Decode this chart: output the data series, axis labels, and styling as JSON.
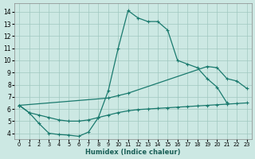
{
  "xlabel": "Humidex (Indice chaleur)",
  "xlim": [
    -0.5,
    23.5
  ],
  "ylim": [
    3.5,
    14.7
  ],
  "xticks": [
    0,
    1,
    2,
    3,
    4,
    5,
    6,
    7,
    8,
    9,
    10,
    11,
    12,
    13,
    14,
    15,
    16,
    17,
    18,
    19,
    20,
    21,
    22,
    23
  ],
  "yticks": [
    4,
    5,
    6,
    7,
    8,
    9,
    10,
    11,
    12,
    13,
    14
  ],
  "bg_color": "#cce8e3",
  "grid_color": "#a0c8c0",
  "line_color": "#1a7a6e",
  "line_width": 0.9,
  "marker_size": 3.0,
  "curve1_x": [
    0,
    1,
    2,
    3,
    4,
    5,
    6,
    7,
    8,
    9,
    10,
    11,
    12,
    13,
    14,
    15,
    16,
    17,
    18,
    19,
    20,
    21
  ],
  "curve1_y": [
    6.3,
    5.7,
    4.8,
    4.0,
    3.9,
    3.85,
    3.75,
    4.1,
    5.3,
    7.5,
    11.0,
    14.1,
    13.5,
    13.2,
    13.2,
    12.5,
    10.0,
    9.7,
    9.4,
    8.5,
    7.8,
    6.5
  ],
  "curve2_x": [
    0,
    9,
    10,
    11,
    19,
    20,
    21,
    22,
    23
  ],
  "curve2_y": [
    6.3,
    6.9,
    7.1,
    7.3,
    9.5,
    9.4,
    8.5,
    8.3,
    7.7
  ],
  "curve3_x": [
    0,
    1,
    2,
    3,
    4,
    5,
    6,
    7,
    8,
    9,
    10,
    11,
    12,
    13,
    14,
    15,
    16,
    17,
    18,
    19,
    20,
    21,
    22,
    23
  ],
  "curve3_y": [
    6.3,
    5.7,
    5.5,
    5.3,
    5.1,
    5.0,
    5.0,
    5.1,
    5.3,
    5.5,
    5.7,
    5.85,
    5.95,
    6.0,
    6.05,
    6.1,
    6.15,
    6.2,
    6.25,
    6.3,
    6.35,
    6.4,
    6.45,
    6.5
  ]
}
